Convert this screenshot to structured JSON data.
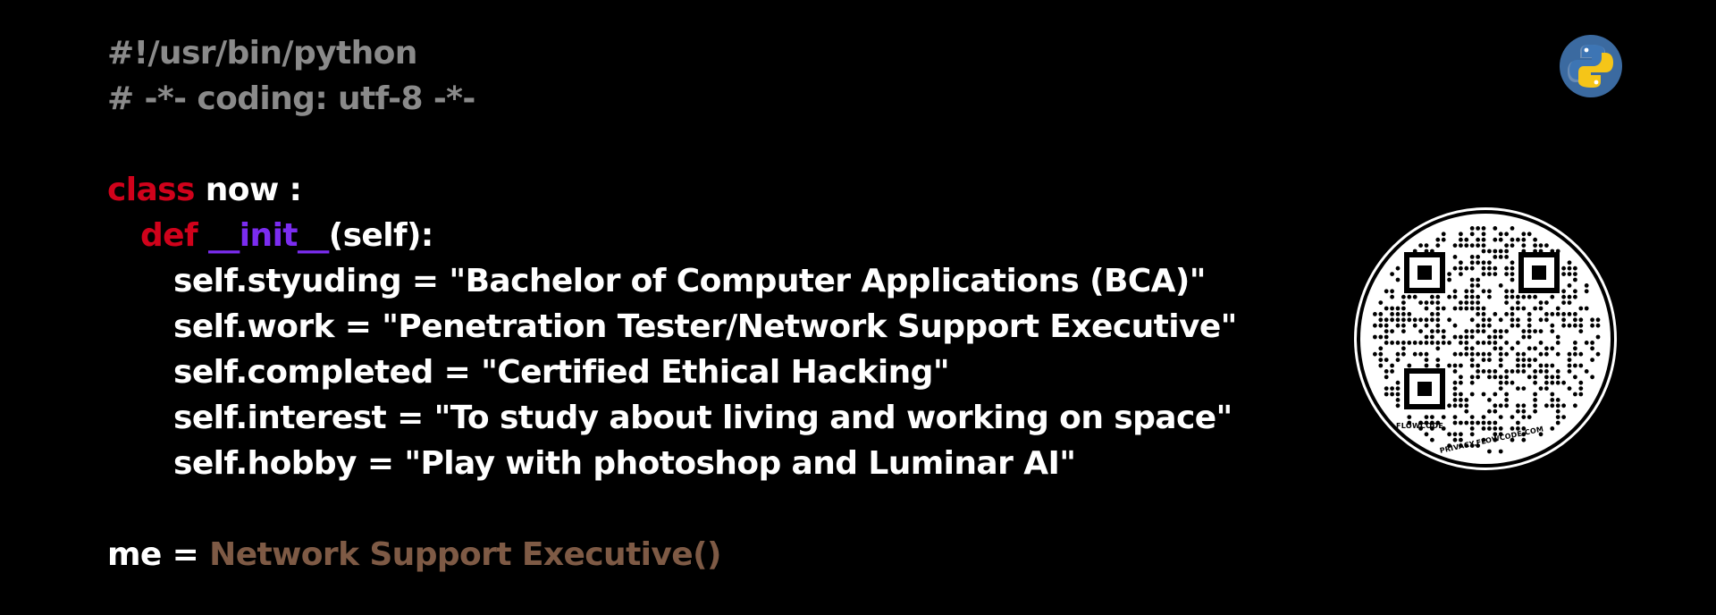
{
  "code": {
    "shebang": "#!/usr/bin/python",
    "coding": "# -*- coding: utf-8 -*-",
    "class_keyword": "class",
    "class_name": "now :",
    "def_keyword": "def",
    "init_name": "__init__",
    "init_params": "(self):",
    "assignments": [
      "self.styuding = \"Bachelor of Computer Applications (BCA)\"",
      "self.work = \"Penetration Tester/Network Support Executive\"",
      "self.completed = \"Certified Ethical Hacking\"",
      "self.interest = \"To study about living and working on space\"",
      "self.hobby = \"Play with photoshop and Luminar AI\""
    ],
    "me_prefix": "me = ",
    "me_value": "Network Support Executive()"
  },
  "qr": {
    "brand": "FLOWCODE",
    "url": "PRIVACY.FLOWCODE.COM"
  },
  "icons": {
    "logo": "python-logo-icon",
    "qr": "qr-code-icon"
  },
  "colors": {
    "background": "#000000",
    "comment": "#8a8a8a",
    "keyword": "#d0021b",
    "function": "#7b2cf0",
    "class_call": "#7e5a45",
    "text": "#ffffff"
  }
}
